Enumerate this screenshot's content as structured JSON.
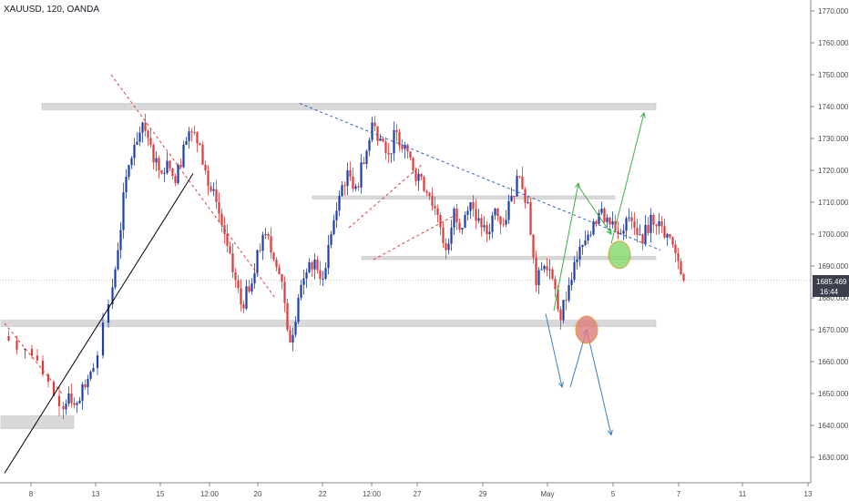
{
  "header": {
    "symbol": "XAUUSD, 120, OANDA"
  },
  "price_tag": {
    "price": "1685.469",
    "countdown": "16:44",
    "color": "#3a3f4b"
  },
  "colors": {
    "up": "#1e3fa8",
    "down": "#e03a3a",
    "zone": "#d9d9d9",
    "axis": "#8a8a8a"
  },
  "chart_data": {
    "type": "candlestick",
    "symbol": "XAUUSD",
    "timeframe": "120",
    "source": "OANDA",
    "ylim": [
      1623,
      1775
    ],
    "y_ticks": [
      1630,
      1640,
      1650,
      1660,
      1670,
      1680,
      1690,
      1700,
      1710,
      1720,
      1730,
      1740,
      1750,
      1760,
      1770
    ],
    "x_ticks": [
      "8",
      "13",
      "15",
      "12:00",
      "20",
      "22",
      "12:00",
      "27",
      "29",
      "May",
      "5",
      "7",
      "11",
      "13"
    ],
    "last_price": 1685.469,
    "price_path": [
      [
        0,
        1668
      ],
      [
        3,
        1664
      ],
      [
        5,
        1656
      ],
      [
        7,
        1646
      ],
      [
        8,
        1650
      ],
      [
        9,
        1647
      ],
      [
        10,
        1652
      ],
      [
        11,
        1658
      ],
      [
        13,
        1678
      ],
      [
        14,
        1695
      ],
      [
        15,
        1718
      ],
      [
        16,
        1728
      ],
      [
        17,
        1735
      ],
      [
        18,
        1728
      ],
      [
        19,
        1720
      ],
      [
        20,
        1723
      ],
      [
        21,
        1716
      ],
      [
        22,
        1728
      ],
      [
        23,
        1732
      ],
      [
        24,
        1728
      ],
      [
        25,
        1715
      ],
      [
        26,
        1710
      ],
      [
        27,
        1700
      ],
      [
        28,
        1688
      ],
      [
        29,
        1678
      ],
      [
        30,
        1682
      ],
      [
        31,
        1695
      ],
      [
        32,
        1700
      ],
      [
        33,
        1692
      ],
      [
        34,
        1685
      ],
      [
        35,
        1666
      ],
      [
        36,
        1680
      ],
      [
        37,
        1688
      ],
      [
        38,
        1692
      ],
      [
        39,
        1686
      ],
      [
        40,
        1700
      ],
      [
        41,
        1712
      ],
      [
        42,
        1720
      ],
      [
        43,
        1715
      ],
      [
        44,
        1722
      ],
      [
        45,
        1735
      ],
      [
        46,
        1730
      ],
      [
        47,
        1725
      ],
      [
        48,
        1732
      ],
      [
        49,
        1728
      ],
      [
        50,
        1720
      ],
      [
        51,
        1718
      ],
      [
        52,
        1712
      ],
      [
        53,
        1706
      ],
      [
        54,
        1695
      ],
      [
        55,
        1708
      ],
      [
        56,
        1702
      ],
      [
        57,
        1710
      ],
      [
        58,
        1705
      ],
      [
        59,
        1700
      ],
      [
        60,
        1708
      ],
      [
        61,
        1703
      ],
      [
        62,
        1712
      ],
      [
        63,
        1718
      ],
      [
        64,
        1710
      ],
      [
        65,
        1684
      ],
      [
        66,
        1690
      ],
      [
        67,
        1686
      ],
      [
        68,
        1673
      ],
      [
        69,
        1684
      ],
      [
        70,
        1692
      ],
      [
        71,
        1698
      ],
      [
        72,
        1704
      ],
      [
        73,
        1708
      ],
      [
        74,
        1703
      ],
      [
        75,
        1700
      ],
      [
        76,
        1705
      ],
      [
        77,
        1702
      ],
      [
        78,
        1697
      ],
      [
        79,
        1706
      ],
      [
        80,
        1704
      ],
      [
        81,
        1700
      ],
      [
        82,
        1694
      ],
      [
        83,
        1685.469
      ]
    ],
    "zones": [
      {
        "x": [
          0,
          8
        ],
        "y": [
          1639,
          1643
        ]
      },
      {
        "x": [
          5,
          79
        ],
        "y": [
          1739,
          1741
        ]
      },
      {
        "x": [
          0,
          79
        ],
        "y": [
          1671,
          1673
        ]
      },
      {
        "x": [
          38,
          74
        ],
        "y": [
          1711,
          1712
        ]
      },
      {
        "x": [
          44,
          79
        ],
        "y": [
          1692,
          1693
        ]
      }
    ],
    "trendlines": [
      {
        "style": "dashed",
        "color": "#e03a3a",
        "points": [
          [
            0,
            1672
          ],
          [
            7,
            1650
          ]
        ]
      },
      {
        "style": "dashed",
        "color": "#e03a3a",
        "points": [
          [
            13,
            1750
          ],
          [
            33,
            1680
          ]
        ]
      },
      {
        "style": "dashed",
        "color": "#e03a3a",
        "points": [
          [
            45,
            1692
          ],
          [
            55,
            1706
          ]
        ]
      },
      {
        "style": "dashed",
        "color": "#e03a3a",
        "points": [
          [
            42,
            1702
          ],
          [
            51,
            1722
          ]
        ]
      },
      {
        "style": "dashed",
        "color": "#2b5bd6",
        "points": [
          [
            36,
            1741
          ],
          [
            80,
            1695
          ]
        ]
      },
      {
        "style": "solid",
        "color": "#000000",
        "points": [
          [
            0,
            1625
          ],
          [
            23,
            1719
          ]
        ]
      }
    ],
    "projections": [
      {
        "color": "#3cb043",
        "points": [
          [
            67,
            1676
          ],
          [
            70,
            1716
          ]
        ]
      },
      {
        "color": "#3cb043",
        "points": [
          [
            70,
            1715
          ],
          [
            74,
            1700
          ]
        ]
      },
      {
        "color": "#3cb043",
        "points": [
          [
            74,
            1697
          ],
          [
            78,
            1738
          ]
        ]
      },
      {
        "color": "#3a7fc7",
        "points": [
          [
            66,
            1675
          ],
          [
            68,
            1652
          ]
        ]
      },
      {
        "color": "#3a7fc7",
        "points": [
          [
            69,
            1652
          ],
          [
            71,
            1670
          ]
        ]
      },
      {
        "color": "#3a7fc7",
        "points": [
          [
            71,
            1670
          ],
          [
            74,
            1637
          ]
        ]
      }
    ],
    "markers": [
      {
        "color": "#7fd86a",
        "x": 75,
        "y": 1693.5
      },
      {
        "color": "#e07b7b",
        "x": 71,
        "y": 1670
      }
    ]
  }
}
